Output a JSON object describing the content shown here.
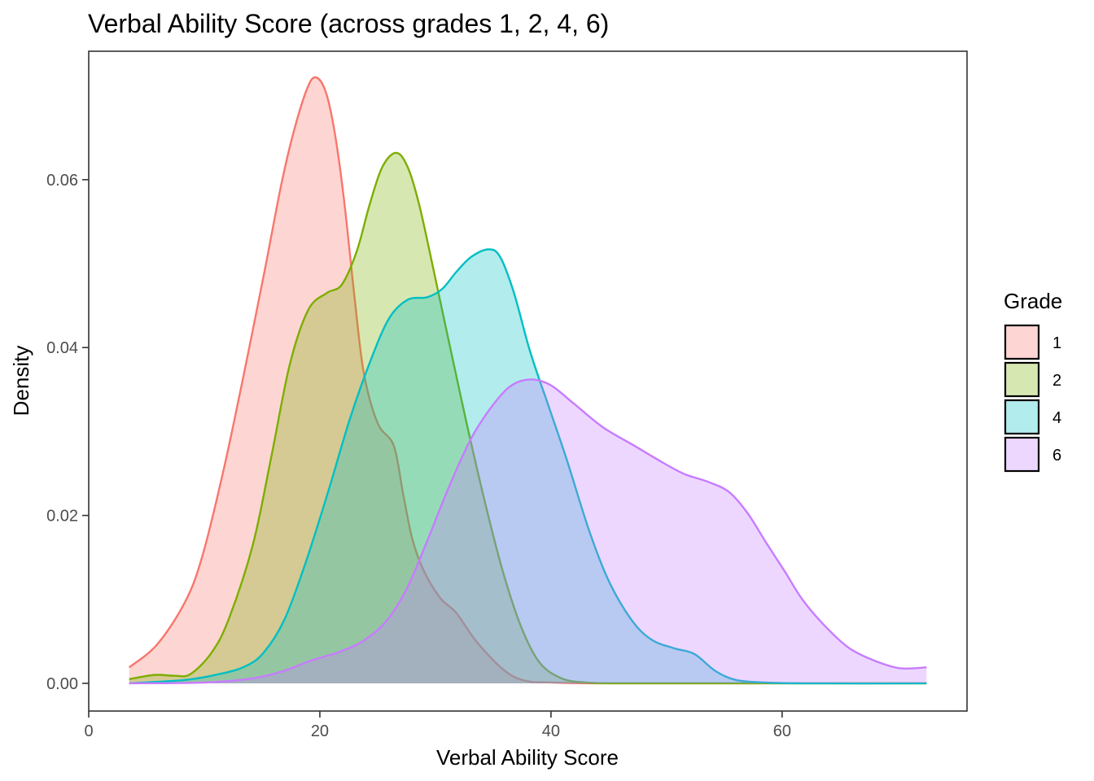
{
  "chart_data": {
    "type": "area",
    "subtype": "density",
    "title": "Verbal Ability Score (across grades 1, 2, 4, 6)",
    "xlabel": "Verbal Ability Score",
    "ylabel": "Density",
    "xlim": [
      0,
      76
    ],
    "ylim": [
      -0.0033,
      0.0753
    ],
    "x_ticks": [
      0,
      20,
      40,
      60
    ],
    "x_tick_labels": [
      "0",
      "20",
      "40",
      "60"
    ],
    "y_ticks": [
      0,
      0.02,
      0.04,
      0.06
    ],
    "y_tick_labels": [
      "0.00",
      "0.02",
      "0.04",
      "0.06"
    ],
    "grid": false,
    "fill_opacity": 0.3,
    "legend": {
      "title": "Grade",
      "position": "right"
    },
    "series": [
      {
        "name": "1",
        "color": "#F8766D",
        "points": [
          [
            3.5,
            0.0019
          ],
          [
            5.9,
            0.0046
          ],
          [
            8.3,
            0.0096
          ],
          [
            9.8,
            0.015
          ],
          [
            11.6,
            0.025
          ],
          [
            13.3,
            0.036
          ],
          [
            15.2,
            0.049
          ],
          [
            16.6,
            0.059
          ],
          [
            17.6,
            0.065
          ],
          [
            18.8,
            0.0705
          ],
          [
            19.6,
            0.0722
          ],
          [
            20.5,
            0.0705
          ],
          [
            21.3,
            0.0655
          ],
          [
            22.1,
            0.0575
          ],
          [
            23.0,
            0.046
          ],
          [
            23.8,
            0.037
          ],
          [
            25.0,
            0.031
          ],
          [
            26.4,
            0.0283
          ],
          [
            27.2,
            0.0226
          ],
          [
            28.0,
            0.0172
          ],
          [
            29.0,
            0.0134
          ],
          [
            30.4,
            0.0102
          ],
          [
            31.8,
            0.0084
          ],
          [
            33.6,
            0.0049
          ],
          [
            36.0,
            0.0015
          ],
          [
            37.8,
            0.0003
          ],
          [
            40.0,
            0.0001
          ],
          [
            44.0,
            0.0
          ],
          [
            55.0,
            0.0
          ],
          [
            72.5,
            0.0
          ]
        ]
      },
      {
        "name": "2",
        "color": "#7CAE00",
        "points": [
          [
            3.5,
            0.0005
          ],
          [
            5.7,
            0.001
          ],
          [
            7.5,
            0.0009
          ],
          [
            8.8,
            0.0011
          ],
          [
            10.6,
            0.0036
          ],
          [
            12.1,
            0.0076
          ],
          [
            14.2,
            0.0165
          ],
          [
            15.8,
            0.027
          ],
          [
            17.4,
            0.038
          ],
          [
            19.0,
            0.0445
          ],
          [
            20.6,
            0.0465
          ],
          [
            21.9,
            0.0475
          ],
          [
            23.2,
            0.0515
          ],
          [
            24.3,
            0.057
          ],
          [
            25.4,
            0.0615
          ],
          [
            26.6,
            0.0632
          ],
          [
            27.6,
            0.0615
          ],
          [
            28.6,
            0.057
          ],
          [
            29.8,
            0.0495
          ],
          [
            31.2,
            0.0405
          ],
          [
            32.7,
            0.031
          ],
          [
            34.3,
            0.0215
          ],
          [
            35.8,
            0.0135
          ],
          [
            37.4,
            0.0068
          ],
          [
            39.0,
            0.0025
          ],
          [
            40.9,
            0.0006
          ],
          [
            43.0,
            0.0001
          ],
          [
            46.0,
            0.0
          ],
          [
            55.0,
            0.0
          ],
          [
            72.5,
            0.0
          ]
        ]
      },
      {
        "name": "4",
        "color": "#00BFC4",
        "points": [
          [
            3.5,
            0.0
          ],
          [
            8.3,
            0.0004
          ],
          [
            11.3,
            0.0011
          ],
          [
            13.5,
            0.002
          ],
          [
            15.1,
            0.0036
          ],
          [
            16.9,
            0.0075
          ],
          [
            18.8,
            0.0145
          ],
          [
            20.8,
            0.0232
          ],
          [
            22.6,
            0.0315
          ],
          [
            24.4,
            0.0385
          ],
          [
            26.0,
            0.0435
          ],
          [
            27.6,
            0.0457
          ],
          [
            29.3,
            0.046
          ],
          [
            30.6,
            0.047
          ],
          [
            31.8,
            0.049
          ],
          [
            33.1,
            0.0508
          ],
          [
            34.6,
            0.0517
          ],
          [
            35.6,
            0.0508
          ],
          [
            36.8,
            0.0465
          ],
          [
            38.2,
            0.0395
          ],
          [
            39.8,
            0.033
          ],
          [
            41.4,
            0.0265
          ],
          [
            43.3,
            0.0182
          ],
          [
            45.0,
            0.0122
          ],
          [
            47.0,
            0.0075
          ],
          [
            48.7,
            0.0052
          ],
          [
            50.6,
            0.0042
          ],
          [
            52.4,
            0.0035
          ],
          [
            54.2,
            0.0015
          ],
          [
            56.0,
            0.0004
          ],
          [
            58.5,
            0.0001
          ],
          [
            62.0,
            0.0
          ],
          [
            72.5,
            0.0
          ]
        ]
      },
      {
        "name": "6",
        "color": "#C77CFF",
        "points": [
          [
            3.5,
            0.0
          ],
          [
            10.0,
            0.0001
          ],
          [
            14.2,
            0.0006
          ],
          [
            16.9,
            0.0015
          ],
          [
            19.2,
            0.0027
          ],
          [
            21.6,
            0.0037
          ],
          [
            23.8,
            0.0051
          ],
          [
            25.8,
            0.0075
          ],
          [
            27.6,
            0.0115
          ],
          [
            29.3,
            0.017
          ],
          [
            31.2,
            0.0235
          ],
          [
            33.1,
            0.0292
          ],
          [
            35.0,
            0.0332
          ],
          [
            36.6,
            0.0355
          ],
          [
            38.3,
            0.0362
          ],
          [
            40.0,
            0.0355
          ],
          [
            42.0,
            0.0333
          ],
          [
            44.5,
            0.0305
          ],
          [
            47.1,
            0.0284
          ],
          [
            49.8,
            0.0262
          ],
          [
            51.6,
            0.0249
          ],
          [
            53.6,
            0.024
          ],
          [
            55.4,
            0.0228
          ],
          [
            57.0,
            0.0203
          ],
          [
            58.6,
            0.0168
          ],
          [
            60.2,
            0.0134
          ],
          [
            61.8,
            0.0099
          ],
          [
            63.8,
            0.0067
          ],
          [
            65.8,
            0.0042
          ],
          [
            68.0,
            0.0027
          ],
          [
            70.2,
            0.0018
          ],
          [
            72.5,
            0.0019
          ]
        ]
      }
    ]
  }
}
